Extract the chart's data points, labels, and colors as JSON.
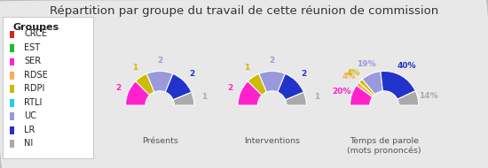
{
  "title": "Répartition par groupe du travail de cette réunion de commission",
  "background_color": "#e8e8e8",
  "groups": [
    "CRCE",
    "EST",
    "SER",
    "RDSE",
    "RDPI",
    "RTLI",
    "UC",
    "LR",
    "NI"
  ],
  "colors": [
    "#dd2222",
    "#22bb22",
    "#ff22cc",
    "#ffaa55",
    "#ccbb00",
    "#22ccee",
    "#9999dd",
    "#2233cc",
    "#aaaaaa"
  ],
  "presences": [
    0,
    0,
    2,
    0,
    1,
    0,
    2,
    2,
    1
  ],
  "interventions": [
    0,
    0,
    2,
    0,
    1,
    0,
    2,
    2,
    1
  ],
  "temps_pct": [
    0,
    0,
    20,
    4,
    4,
    0,
    19,
    40,
    14
  ],
  "chart_titles": [
    "Présents",
    "Interventions",
    "Temps de parole\n(mots prononcés)"
  ],
  "legend_title": "Groupes"
}
